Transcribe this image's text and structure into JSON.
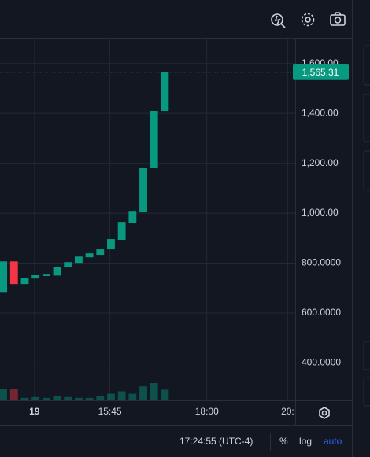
{
  "chart_data": {
    "type": "candlestick",
    "x": [
      0,
      1,
      2,
      3,
      4,
      5,
      6,
      7,
      8,
      9,
      10,
      11,
      12,
      13,
      14,
      15
    ],
    "open": [
      684,
      807,
      716,
      738,
      748,
      750,
      785,
      801,
      823,
      833,
      855,
      893,
      962,
      1006,
      1180,
      1410
    ],
    "close": [
      807,
      716,
      741,
      754,
      757,
      785,
      804,
      826,
      839,
      855,
      896,
      965,
      1009,
      1180,
      1410,
      1565.31
    ],
    "volume": [
      14,
      14,
      3,
      4,
      3,
      5,
      4,
      3,
      3,
      5,
      8,
      11,
      8,
      17,
      21,
      13
    ],
    "up_color": "#089981",
    "down_color": "#f23645",
    "ylim": [
      250,
      1700
    ],
    "yticks": [
      {
        "value": 400,
        "label": "400.0000"
      },
      {
        "value": 600,
        "label": "600.0000"
      },
      {
        "value": 800,
        "label": "800.0000"
      },
      {
        "value": 1000,
        "label": "1,000.00"
      },
      {
        "value": 1200,
        "label": "1,200.00"
      },
      {
        "value": 1400,
        "label": "1,400.00"
      },
      {
        "value": 1600,
        "label": "1,600.00"
      }
    ],
    "xlim": [
      -0.3,
      27.1
    ],
    "xticks": [
      {
        "value": 2.9,
        "label": "19"
      },
      {
        "value": 9.9,
        "label": "15:45"
      },
      {
        "value": 18.9,
        "label": "18:00"
      },
      {
        "value": 26.4,
        "label": "20:"
      }
    ],
    "last_price": {
      "value": 1565.31,
      "label": "1,565.31"
    },
    "grid": true
  },
  "status_bar": {
    "time": "17:24:55 (UTC-4)",
    "percent": "%",
    "log": "log",
    "auto": "auto"
  }
}
